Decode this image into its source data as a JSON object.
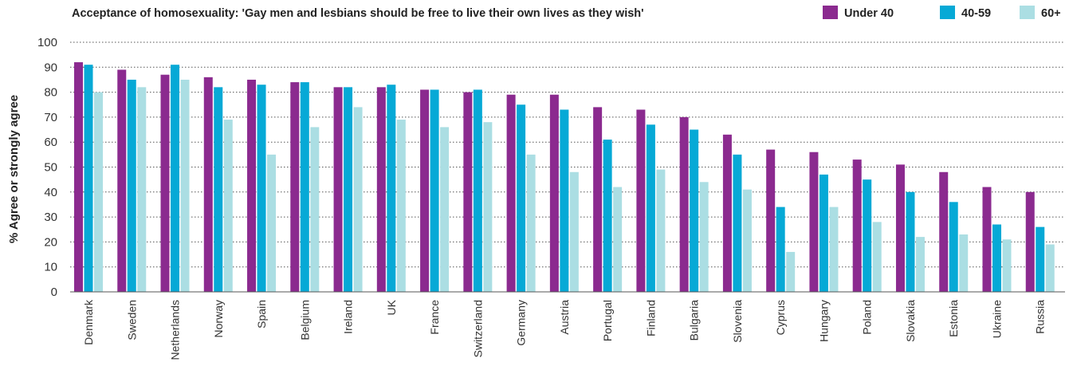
{
  "chart_data": {
    "type": "bar",
    "title": "Acceptance of homosexuality: 'Gay men and lesbians should be free to live their own lives as they wish'",
    "xlabel": "",
    "ylabel": "% Agree or strongly agree",
    "ylim": [
      0,
      100
    ],
    "yticks": [
      0,
      10,
      20,
      30,
      40,
      50,
      60,
      70,
      80,
      90,
      100
    ],
    "grid": true,
    "legend_position": "top-right",
    "categories": [
      "Denmark",
      "Sweden",
      "Netherlands",
      "Norway",
      "Spain",
      "Belgium",
      "Ireland",
      "UK",
      "France",
      "Switzerland",
      "Germany",
      "Austria",
      "Portugal",
      "Finland",
      "Bulgaria",
      "Slovenia",
      "Cyprus",
      "Hungary",
      "Poland",
      "Slovakia",
      "Estonia",
      "Ukraine",
      "Russia"
    ],
    "series": [
      {
        "name": "Under 40",
        "color": "#8B2A8F",
        "values": [
          92,
          89,
          87,
          86,
          85,
          84,
          82,
          82,
          81,
          80,
          79,
          79,
          74,
          73,
          70,
          63,
          57,
          56,
          53,
          51,
          48,
          42,
          40
        ]
      },
      {
        "name": "40-59",
        "color": "#06A9D6",
        "values": [
          91,
          85,
          91,
          82,
          83,
          84,
          82,
          83,
          81,
          81,
          75,
          73,
          61,
          67,
          65,
          55,
          34,
          47,
          45,
          40,
          36,
          27,
          26
        ]
      },
      {
        "name": "60+",
        "color": "#ABDEE3",
        "values": [
          80,
          82,
          85,
          69,
          55,
          66,
          74,
          69,
          66,
          68,
          55,
          48,
          42,
          49,
          44,
          41,
          16,
          34,
          28,
          22,
          23,
          21,
          19
        ]
      }
    ]
  }
}
